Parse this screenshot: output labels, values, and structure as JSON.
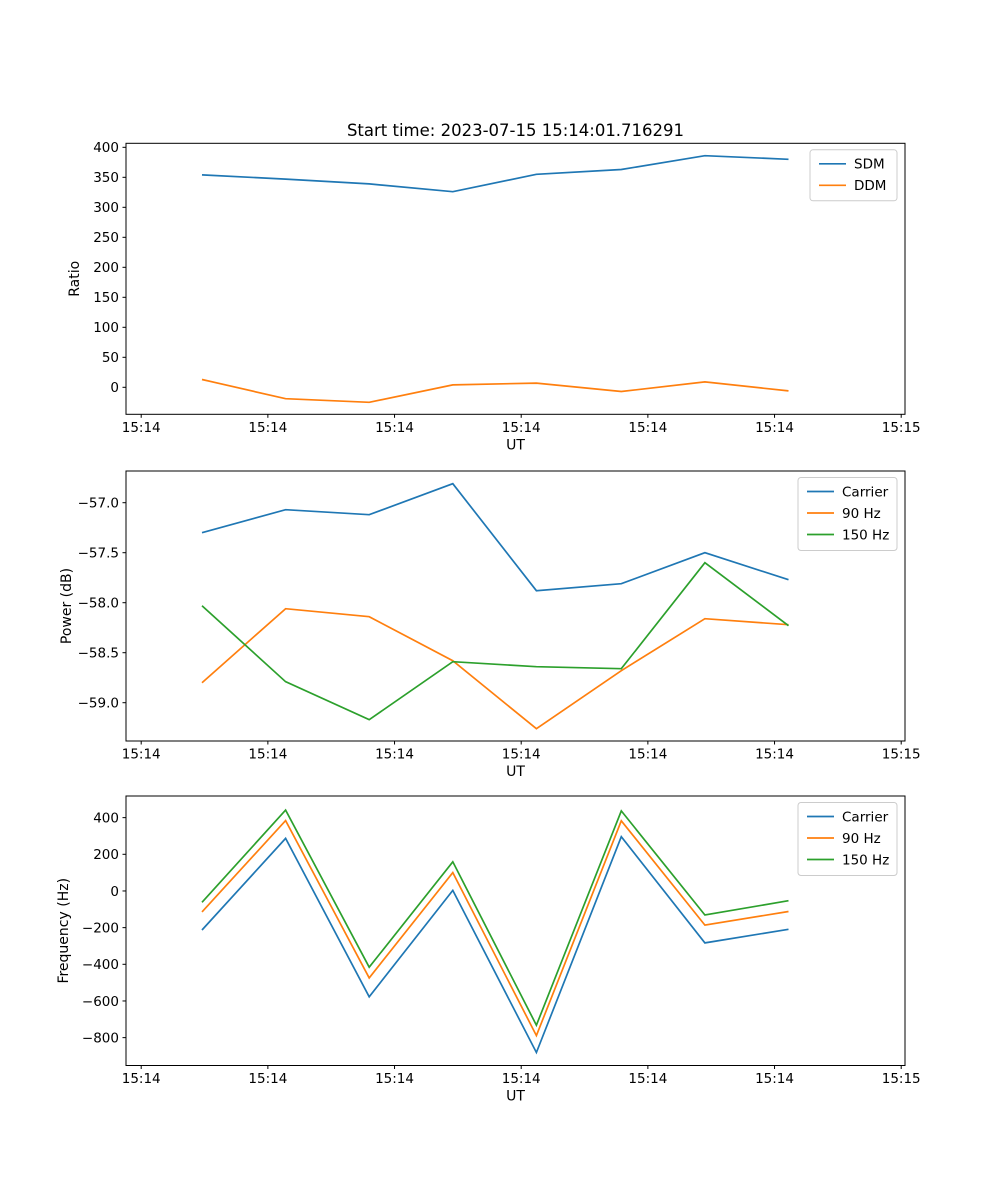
{
  "figure": {
    "background": "#ffffff",
    "text_color": "#000000",
    "frame_color": "#000000",
    "legend_border_color": "#cccccc"
  },
  "chart_data": [
    {
      "type": "line",
      "title": "Start time: 2023-07-15 15:14:01.716291",
      "xlabel": "UT",
      "ylabel": "Ratio",
      "legend_position": "upper right",
      "x": [
        4.8,
        11.4,
        18.0,
        24.6,
        31.2,
        37.9,
        44.5,
        51.1
      ],
      "xlim": [
        -1.2,
        60.3
      ],
      "xticks": [
        0,
        10,
        20,
        30,
        40,
        50,
        60
      ],
      "xtick_labels": [
        "15:14",
        "15:14",
        "15:14",
        "15:14",
        "15:14",
        "15:14",
        "15:15"
      ],
      "ylim": [
        -45,
        406.7
      ],
      "yticks": [
        0,
        50,
        100,
        150,
        200,
        250,
        300,
        350,
        400
      ],
      "ytick_labels": [
        "0",
        "50",
        "100",
        "150",
        "200",
        "250",
        "300",
        "350",
        "400"
      ],
      "series": [
        {
          "name": "SDM",
          "color": "#1f77b4",
          "values": [
            354,
            347,
            339,
            326,
            355,
            363,
            386,
            380
          ]
        },
        {
          "name": "DDM",
          "color": "#ff7f0e",
          "values": [
            13,
            -19,
            -25,
            4,
            7,
            -7,
            9,
            -6
          ]
        }
      ]
    },
    {
      "type": "line",
      "title": "",
      "xlabel": "UT",
      "ylabel": "Power (dB)",
      "legend_position": "upper right",
      "x": [
        4.8,
        11.4,
        18.0,
        24.6,
        31.2,
        37.9,
        44.5,
        51.1
      ],
      "xlim": [
        -1.2,
        60.3
      ],
      "xticks": [
        0,
        10,
        20,
        30,
        40,
        50,
        60
      ],
      "xtick_labels": [
        "15:14",
        "15:14",
        "15:14",
        "15:14",
        "15:14",
        "15:14",
        "15:15"
      ],
      "ylim": [
        -59.383,
        -56.683
      ],
      "yticks": [
        -59.0,
        -58.5,
        -58.0,
        -57.5,
        -57.0
      ],
      "ytick_labels": [
        "−59.0",
        "−58.5",
        "−58.0",
        "−57.5",
        "−57.0"
      ],
      "series": [
        {
          "name": "Carrier",
          "color": "#1f77b4",
          "values": [
            -57.3,
            -57.07,
            -57.12,
            -56.81,
            -57.88,
            -57.81,
            -57.5,
            -57.77
          ]
        },
        {
          "name": "90 Hz",
          "color": "#ff7f0e",
          "values": [
            -58.8,
            -58.06,
            -58.14,
            -58.58,
            -59.26,
            -58.68,
            -58.16,
            -58.22
          ]
        },
        {
          "name": "150 Hz",
          "color": "#2ca02c",
          "values": [
            -58.03,
            -58.79,
            -59.17,
            -58.59,
            -58.64,
            -58.66,
            -57.6,
            -58.23
          ]
        }
      ]
    },
    {
      "type": "line",
      "title": "",
      "xlabel": "UT",
      "ylabel": "Frequency (Hz)",
      "legend_position": "upper right",
      "x": [
        4.8,
        11.4,
        18.0,
        24.6,
        31.2,
        37.9,
        44.5,
        51.1
      ],
      "xlim": [
        -1.2,
        60.3
      ],
      "xticks": [
        0,
        10,
        20,
        30,
        40,
        50,
        60
      ],
      "xtick_labels": [
        "15:14",
        "15:14",
        "15:14",
        "15:14",
        "15:14",
        "15:14",
        "15:15"
      ],
      "ylim": [
        -952,
        518
      ],
      "yticks": [
        -800,
        -600,
        -400,
        -200,
        0,
        200,
        400
      ],
      "ytick_labels": [
        "−800",
        "−600",
        "−400",
        "−200",
        "0",
        "200",
        "400"
      ],
      "series": [
        {
          "name": "Carrier",
          "color": "#1f77b4",
          "values": [
            -213,
            287,
            -577,
            3,
            -881,
            296,
            -283,
            -209
          ]
        },
        {
          "name": "90 Hz",
          "color": "#ff7f0e",
          "values": [
            -114,
            384,
            -474,
            100,
            -789,
            383,
            -186,
            -112
          ]
        },
        {
          "name": "150 Hz",
          "color": "#2ca02c",
          "values": [
            -62,
            441,
            -416,
            159,
            -732,
            437,
            -131,
            -53
          ]
        }
      ]
    }
  ]
}
